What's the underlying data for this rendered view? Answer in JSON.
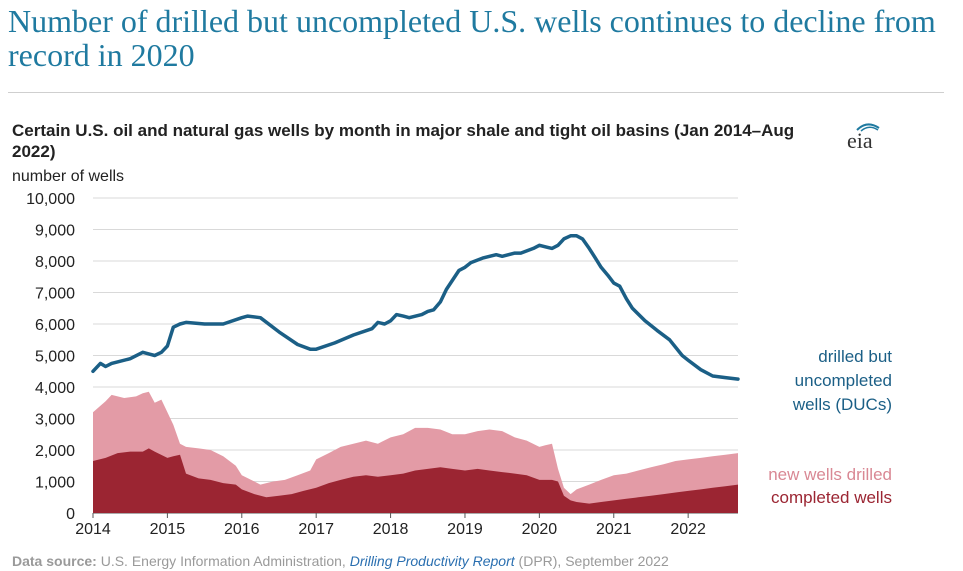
{
  "headline": "Number of drilled but uncompleted U.S. wells continues to decline from record in 2020",
  "logo_text": "eia",
  "source": {
    "label": "Data source:",
    "agency": "U.S. Energy Information Administration,",
    "report": "Drilling Productivity Report",
    "suffix": "(DPR), September 2022"
  },
  "chart_data": {
    "type": "line",
    "title": "Certain U.S. oil and natural gas wells by month in major shale and tight oil basins (Jan 2014–Aug 2022)",
    "ylabel": "number of wells",
    "ylim": [
      0,
      10000
    ],
    "yticks": [
      0,
      1000,
      2000,
      3000,
      4000,
      5000,
      6000,
      7000,
      8000,
      9000,
      10000
    ],
    "ytick_labels": [
      "0",
      "1,000",
      "2,000",
      "3,000",
      "4,000",
      "5,000",
      "6,000",
      "7,000",
      "8,000",
      "9,000",
      "10,000"
    ],
    "xlim": [
      2014.0,
      2022.67
    ],
    "xticks": [
      2014,
      2015,
      2016,
      2017,
      2018,
      2019,
      2020,
      2021,
      2022
    ],
    "xtick_labels": [
      "2014",
      "2015",
      "2016",
      "2017",
      "2018",
      "2019",
      "2020",
      "2021",
      "2022"
    ],
    "grid": true,
    "series": [
      {
        "name": "drilled but uncompleted wells (DUCs)",
        "kind": "line",
        "color": "#1b5f86",
        "x": [
          2014.0,
          2014.1,
          2014.17,
          2014.25,
          2014.5,
          2014.67,
          2014.75,
          2014.83,
          2014.92,
          2015.0,
          2015.08,
          2015.17,
          2015.25,
          2015.5,
          2015.75,
          2016.0,
          2016.08,
          2016.25,
          2016.5,
          2016.75,
          2016.92,
          2017.0,
          2017.25,
          2017.5,
          2017.75,
          2017.83,
          2017.92,
          2018.0,
          2018.08,
          2018.17,
          2018.25,
          2018.42,
          2018.5,
          2018.58,
          2018.67,
          2018.75,
          2018.92,
          2019.0,
          2019.08,
          2019.25,
          2019.42,
          2019.5,
          2019.67,
          2019.75,
          2019.92,
          2020.0,
          2020.08,
          2020.17,
          2020.25,
          2020.33,
          2020.42,
          2020.5,
          2020.58,
          2020.67,
          2020.75,
          2020.83,
          2020.92,
          2021.0,
          2021.08,
          2021.17,
          2021.25,
          2021.42,
          2021.58,
          2021.75,
          2021.92,
          2022.0,
          2022.17,
          2022.33,
          2022.5,
          2022.67
        ],
        "values": [
          4500,
          4750,
          4650,
          4750,
          4900,
          5100,
          5050,
          5000,
          5100,
          5300,
          5900,
          6000,
          6050,
          6000,
          6000,
          6200,
          6250,
          6200,
          5750,
          5350,
          5200,
          5200,
          5400,
          5650,
          5850,
          6050,
          6000,
          6100,
          6300,
          6250,
          6200,
          6300,
          6400,
          6450,
          6700,
          7100,
          7700,
          7800,
          7950,
          8100,
          8200,
          8150,
          8250,
          8250,
          8400,
          8500,
          8450,
          8400,
          8500,
          8700,
          8800,
          8800,
          8700,
          8400,
          8100,
          7800,
          7550,
          7300,
          7200,
          6800,
          6500,
          6100,
          5800,
          5500,
          5000,
          4850,
          4550,
          4350,
          4300,
          4250
        ]
      },
      {
        "name": "new wells drilled",
        "kind": "area",
        "color": "#e39ba6",
        "x": [
          2014.0,
          2014.17,
          2014.25,
          2014.42,
          2014.58,
          2014.67,
          2014.75,
          2014.83,
          2014.92,
          2015.0,
          2015.08,
          2015.17,
          2015.25,
          2015.42,
          2015.58,
          2015.75,
          2015.92,
          2016.0,
          2016.17,
          2016.25,
          2016.42,
          2016.58,
          2016.75,
          2016.92,
          2017.0,
          2017.17,
          2017.33,
          2017.5,
          2017.67,
          2017.83,
          2018.0,
          2018.17,
          2018.33,
          2018.5,
          2018.67,
          2018.83,
          2019.0,
          2019.17,
          2019.33,
          2019.5,
          2019.67,
          2019.83,
          2020.0,
          2020.08,
          2020.17,
          2020.25,
          2020.33,
          2020.42,
          2020.5,
          2020.67,
          2020.83,
          2021.0,
          2021.17,
          2021.33,
          2021.5,
          2021.67,
          2021.83,
          2022.0,
          2022.17,
          2022.33,
          2022.5,
          2022.67
        ],
        "values": [
          3200,
          3550,
          3750,
          3650,
          3700,
          3800,
          3850,
          3500,
          3600,
          3200,
          2800,
          2200,
          2100,
          2050,
          2000,
          1800,
          1500,
          1200,
          1000,
          900,
          1000,
          1050,
          1200,
          1350,
          1700,
          1900,
          2100,
          2200,
          2300,
          2200,
          2400,
          2500,
          2700,
          2700,
          2650,
          2500,
          2500,
          2600,
          2650,
          2600,
          2400,
          2300,
          2100,
          2150,
          2200,
          1400,
          800,
          600,
          750,
          900,
          1050,
          1200,
          1250,
          1350,
          1450,
          1550,
          1650,
          1700,
          1750,
          1800,
          1850,
          1900
        ]
      },
      {
        "name": "completed wells",
        "kind": "area",
        "color": "#9b2532",
        "x": [
          2014.0,
          2014.17,
          2014.33,
          2014.5,
          2014.67,
          2014.75,
          2014.83,
          2015.0,
          2015.08,
          2015.17,
          2015.25,
          2015.42,
          2015.58,
          2015.75,
          2015.92,
          2016.0,
          2016.17,
          2016.33,
          2016.5,
          2016.67,
          2016.83,
          2017.0,
          2017.17,
          2017.33,
          2017.5,
          2017.67,
          2017.83,
          2018.0,
          2018.17,
          2018.33,
          2018.5,
          2018.67,
          2018.83,
          2019.0,
          2019.17,
          2019.33,
          2019.5,
          2019.67,
          2019.83,
          2020.0,
          2020.17,
          2020.25,
          2020.33,
          2020.42,
          2020.5,
          2020.67,
          2020.83,
          2021.0,
          2021.17,
          2021.33,
          2021.5,
          2021.67,
          2021.83,
          2022.0,
          2022.17,
          2022.33,
          2022.5,
          2022.67
        ],
        "values": [
          1650,
          1750,
          1900,
          1950,
          1950,
          2050,
          1950,
          1750,
          1800,
          1850,
          1250,
          1100,
          1050,
          950,
          900,
          750,
          600,
          500,
          550,
          600,
          700,
          800,
          950,
          1050,
          1150,
          1200,
          1150,
          1200,
          1250,
          1350,
          1400,
          1450,
          1400,
          1350,
          1400,
          1350,
          1300,
          1250,
          1200,
          1050,
          1050,
          1000,
          550,
          400,
          350,
          300,
          350,
          400,
          450,
          500,
          550,
          600,
          650,
          700,
          750,
          800,
          850,
          900
        ]
      }
    ]
  }
}
